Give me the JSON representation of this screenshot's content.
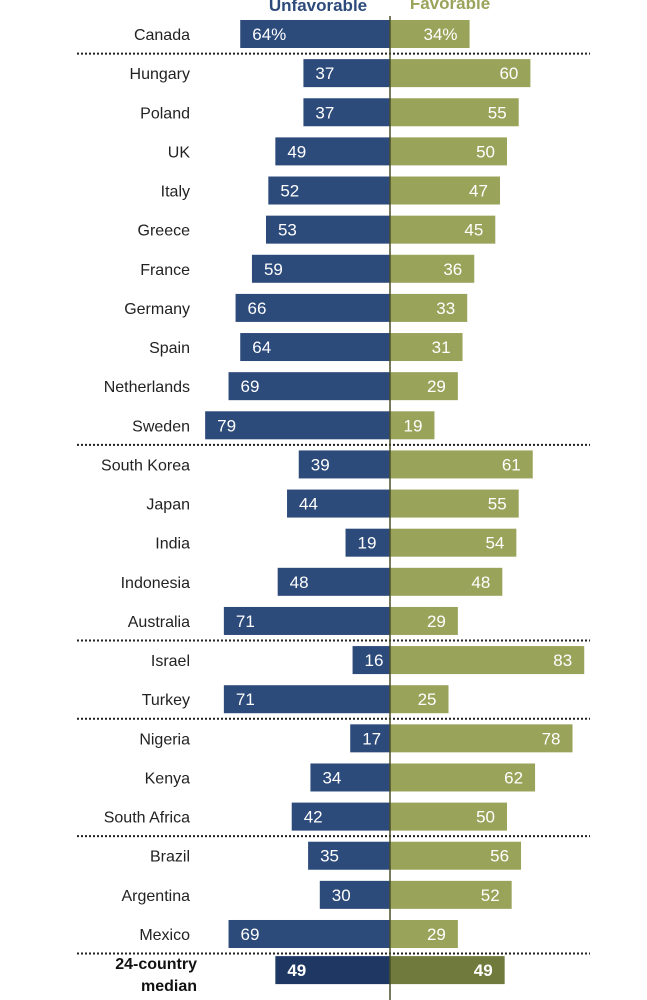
{
  "chart_data": {
    "type": "bar",
    "orientation": "horizontal-diverging",
    "legend": [
      "Unfavorable",
      "Favorable"
    ],
    "categories": [
      "Canada",
      "Hungary",
      "Poland",
      "UK",
      "Italy",
      "Greece",
      "France",
      "Germany",
      "Spain",
      "Netherlands",
      "Sweden",
      "South Korea",
      "Japan",
      "India",
      "Indonesia",
      "Australia",
      "Israel",
      "Turkey",
      "Nigeria",
      "Kenya",
      "South Africa",
      "Brazil",
      "Argentina",
      "Mexico"
    ],
    "series": [
      {
        "name": "Unfavorable",
        "color": "#2c4a7a",
        "values": [
          64,
          37,
          37,
          49,
          52,
          53,
          59,
          66,
          64,
          69,
          79,
          39,
          44,
          19,
          48,
          71,
          16,
          71,
          17,
          34,
          42,
          35,
          30,
          69
        ]
      },
      {
        "name": "Favorable",
        "color": "#9aa35a",
        "values": [
          34,
          60,
          55,
          50,
          47,
          45,
          36,
          33,
          31,
          29,
          19,
          61,
          55,
          54,
          48,
          29,
          83,
          25,
          78,
          62,
          50,
          56,
          52,
          29
        ]
      }
    ],
    "first_row_suffix": "%",
    "group_dividers_after": [
      "Canada",
      "Sweden",
      "Australia",
      "Turkey",
      "South Africa",
      "Mexico"
    ],
    "median": {
      "label_line1": "24-country",
      "label_line2": "median",
      "unfavorable": 49,
      "favorable": 49,
      "unfavorable_color": "#1f3863",
      "favorable_color": "#6f7a3c"
    },
    "xlim": [
      -80,
      85
    ]
  }
}
